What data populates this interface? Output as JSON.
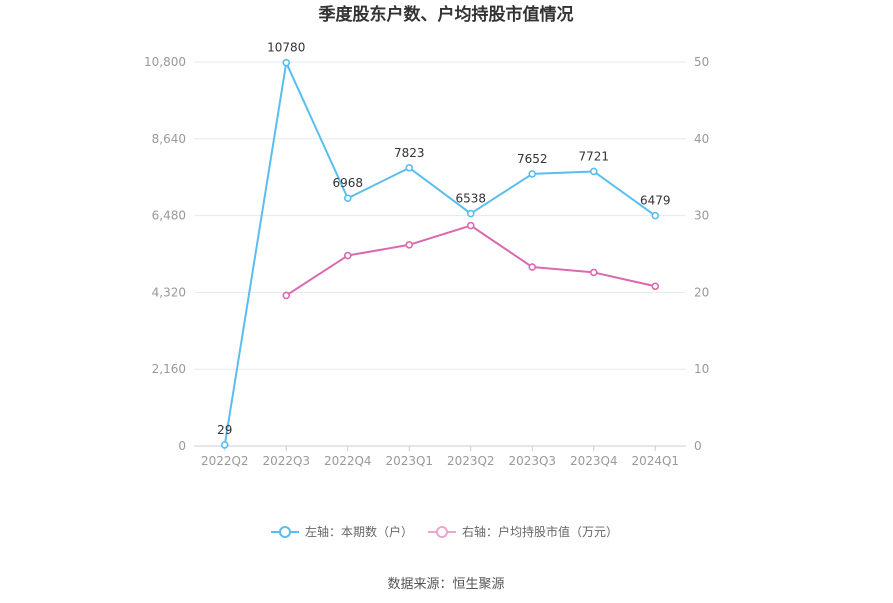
{
  "chart_data": {
    "type": "line",
    "title": "季度股东户数、户均持股市值情况",
    "categories": [
      "2022Q2",
      "2022Q3",
      "2022Q4",
      "2023Q1",
      "2023Q2",
      "2023Q3",
      "2023Q4",
      "2024Q1"
    ],
    "series": [
      {
        "name": "左轴：本期数（户）",
        "axis": "left",
        "color": "#5bbdef",
        "values": [
          29,
          10780,
          6968,
          7823,
          6538,
          7652,
          7721,
          6479
        ],
        "labels": [
          "29",
          "10780",
          "6968",
          "7823",
          "6538",
          "7652",
          "7721",
          "6479"
        ]
      },
      {
        "name": "右轴：户均持股市值（万元）",
        "axis": "right",
        "color": "#d96aae",
        "values": [
          null,
          19.6,
          24.8,
          26.2,
          28.7,
          23.3,
          22.6,
          20.8
        ]
      }
    ],
    "left_axis": {
      "min": 0,
      "max": 10800,
      "ticks": [
        "0",
        "2,160",
        "4,320",
        "6,480",
        "8,640",
        "10,800"
      ]
    },
    "right_axis": {
      "min": 0,
      "max": 50,
      "ticks": [
        "0",
        "10",
        "20",
        "30",
        "40",
        "50"
      ]
    },
    "grid": true,
    "legend_position": "bottom-center",
    "source": "数据来源：恒生聚源"
  }
}
